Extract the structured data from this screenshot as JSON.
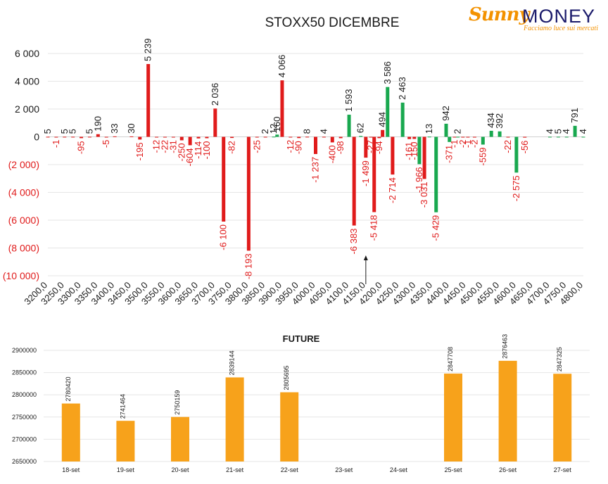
{
  "logo": {
    "brand_1": "Sunny",
    "brand_2": "MONEY",
    "tagline": "Facciamo luce sui mercati"
  },
  "colors": {
    "negative": "#e01b1b",
    "positive": "#19a84f",
    "future": "#f7a21b",
    "gridline": "#e6e6e6",
    "text": "#1a1a1a"
  },
  "chart_data": [
    {
      "type": "bar",
      "title": "STOXX50 DICEMBRE",
      "ylim": [
        -10000,
        6000
      ],
      "yticks": [
        6000,
        4000,
        2000,
        0,
        -2000,
        -4000,
        -6000,
        -8000,
        -10000
      ],
      "ytick_labels": [
        "6 000",
        "4 000",
        "2 000",
        "0",
        "(2 000)",
        "(4 000)",
        "(6 000)",
        "(8 000)",
        "(10 000)"
      ],
      "xlim": [
        3200,
        4800
      ],
      "xticks": [
        3200,
        3250,
        3300,
        3350,
        3400,
        3450,
        3500,
        3550,
        3600,
        3650,
        3700,
        3750,
        3800,
        3850,
        3900,
        3950,
        4000,
        4050,
        4100,
        4150,
        4200,
        4250,
        4300,
        4350,
        4400,
        4450,
        4500,
        4550,
        4600,
        4650,
        4700,
        4750,
        4800
      ],
      "xtick_labels": [
        "3200,0",
        "3250,0",
        "3300,0",
        "3350,0",
        "3400,0",
        "3450,0",
        "3500,0",
        "3550,0",
        "3600,0",
        "3650,0",
        "3700,0",
        "3750,0",
        "3800,0",
        "3850,0",
        "3900,0",
        "3950,0",
        "4000,0",
        "4050,0",
        "4100,0",
        "4150,0",
        "4200,0",
        "4250,0",
        "4300,0",
        "4350,0",
        "4400,0",
        "4450,0",
        "4500,0",
        "4550,0",
        "4600,0",
        "4650,0",
        "4700,0",
        "4750,0",
        "4800,0"
      ],
      "grid": true,
      "annotation_arrow_x": 4150,
      "bars": [
        {
          "x": 3200,
          "value": 5,
          "label": "5",
          "color": "red"
        },
        {
          "x": 3225,
          "value": -1,
          "label": "-1",
          "color": "red"
        },
        {
          "x": 3250,
          "value": 5,
          "label": "5",
          "color": "red"
        },
        {
          "x": 3275,
          "value": 5,
          "label": "5",
          "color": "red"
        },
        {
          "x": 3300,
          "value": -95,
          "label": "-95",
          "color": "red"
        },
        {
          "x": 3325,
          "value": 5,
          "label": "5",
          "color": "red"
        },
        {
          "x": 3350,
          "value": 190,
          "label": "190",
          "color": "red"
        },
        {
          "x": 3375,
          "value": -5,
          "label": "-5",
          "color": "red"
        },
        {
          "x": 3400,
          "value": 33,
          "label": "33",
          "color": "red"
        },
        {
          "x": 3450,
          "value": 30,
          "label": "30",
          "color": "red"
        },
        {
          "x": 3475,
          "value": -195,
          "label": "-195",
          "color": "red"
        },
        {
          "x": 3500,
          "value": 5239,
          "label": "5 239",
          "color": "red"
        },
        {
          "x": 3525,
          "value": -12,
          "label": "-12",
          "color": "red"
        },
        {
          "x": 3550,
          "value": -22,
          "label": "-22",
          "color": "red"
        },
        {
          "x": 3575,
          "value": -31,
          "label": "-31",
          "color": "red"
        },
        {
          "x": 3600,
          "value": -250,
          "label": "-250",
          "color": "red"
        },
        {
          "x": 3625,
          "value": -604,
          "label": "-604",
          "color": "red"
        },
        {
          "x": 3650,
          "value": -114,
          "label": "-114",
          "color": "red"
        },
        {
          "x": 3675,
          "value": -100,
          "label": "-100",
          "color": "red"
        },
        {
          "x": 3700,
          "value": 2036,
          "label": "2 036",
          "color": "red"
        },
        {
          "x": 3725,
          "value": -6100,
          "label": "-6 100",
          "color": "red"
        },
        {
          "x": 3750,
          "value": -82,
          "label": "-82",
          "color": "red"
        },
        {
          "x": 3800,
          "value": -8193,
          "label": "-8 193",
          "color": "red"
        },
        {
          "x": 3825,
          "value": -25,
          "label": "-25",
          "color": "red"
        },
        {
          "x": 3850,
          "value": 2,
          "label": "2",
          "color": "red"
        },
        {
          "x": 3875,
          "value": 12,
          "label": "12",
          "color": "green"
        },
        {
          "x": 3885,
          "value": 160,
          "label": "160",
          "color": "green"
        },
        {
          "x": 3900,
          "value": 4066,
          "label": "4 066",
          "color": "red"
        },
        {
          "x": 3925,
          "value": -12,
          "label": "-12",
          "color": "red"
        },
        {
          "x": 3950,
          "value": -90,
          "label": "-90",
          "color": "red"
        },
        {
          "x": 3975,
          "value": 8,
          "label": "8",
          "color": "red"
        },
        {
          "x": 4000,
          "value": -1237,
          "label": "-1 237",
          "color": "red"
        },
        {
          "x": 4025,
          "value": 4,
          "label": "4",
          "color": "red"
        },
        {
          "x": 4050,
          "value": -400,
          "label": "-400",
          "color": "red"
        },
        {
          "x": 4075,
          "value": -98,
          "label": "-98",
          "color": "red"
        },
        {
          "x": 4100,
          "value": 1593,
          "label": "1 593",
          "color": "green"
        },
        {
          "x": 4115,
          "value": -6383,
          "label": "-6 383",
          "color": "red"
        },
        {
          "x": 4135,
          "value": 62,
          "label": "62",
          "color": "green"
        },
        {
          "x": 4150,
          "value": -1499,
          "label": "-1 499",
          "color": "red"
        },
        {
          "x": 4165,
          "value": -27,
          "label": "-27",
          "color": "red"
        },
        {
          "x": 4175,
          "value": -5418,
          "label": "-5 418",
          "color": "red"
        },
        {
          "x": 4190,
          "value": -94,
          "label": "-94",
          "color": "red"
        },
        {
          "x": 4200,
          "value": 494,
          "label": "494",
          "color": "red"
        },
        {
          "x": 4215,
          "value": 3586,
          "label": "3 586",
          "color": "green"
        },
        {
          "x": 4230,
          "value": -2714,
          "label": "-2 714",
          "color": "red"
        },
        {
          "x": 4260,
          "value": 2463,
          "label": "2 463",
          "color": "green"
        },
        {
          "x": 4280,
          "value": -161,
          "label": "-161",
          "color": "red"
        },
        {
          "x": 4295,
          "value": -150,
          "label": "-150",
          "color": "red"
        },
        {
          "x": 4310,
          "value": -1966,
          "label": "-1 966",
          "color": "green"
        },
        {
          "x": 4325,
          "value": -3031,
          "label": "-3 031",
          "color": "red"
        },
        {
          "x": 4340,
          "value": 13,
          "label": "13",
          "color": "green"
        },
        {
          "x": 4360,
          "value": -5429,
          "label": "-5 429",
          "color": "green"
        },
        {
          "x": 4390,
          "value": 942,
          "label": "942",
          "color": "green"
        },
        {
          "x": 4400,
          "value": -371,
          "label": "-371",
          "color": "green"
        },
        {
          "x": 4415,
          "value": -1,
          "label": "-1",
          "color": "red"
        },
        {
          "x": 4425,
          "value": 2,
          "label": "2",
          "color": "green"
        },
        {
          "x": 4440,
          "value": -2,
          "label": "-2",
          "color": "red"
        },
        {
          "x": 4455,
          "value": -1,
          "label": "-1",
          "color": "red"
        },
        {
          "x": 4475,
          "value": -2,
          "label": "-2",
          "color": "red"
        },
        {
          "x": 4500,
          "value": -559,
          "label": "-559",
          "color": "green"
        },
        {
          "x": 4525,
          "value": 434,
          "label": "434",
          "color": "green"
        },
        {
          "x": 4550,
          "value": 392,
          "label": "392",
          "color": "green"
        },
        {
          "x": 4575,
          "value": -22,
          "label": "-22",
          "color": "red"
        },
        {
          "x": 4600,
          "value": -2575,
          "label": "-2 575",
          "color": "green"
        },
        {
          "x": 4625,
          "value": -56,
          "label": "-56",
          "color": "red"
        },
        {
          "x": 4700,
          "value": 4,
          "label": "4",
          "color": "green"
        },
        {
          "x": 4725,
          "value": 5,
          "label": "5",
          "color": "green"
        },
        {
          "x": 4750,
          "value": 4,
          "label": "4",
          "color": "green"
        },
        {
          "x": 4775,
          "value": 791,
          "label": "791",
          "color": "green"
        },
        {
          "x": 4800,
          "value": 4,
          "label": "4",
          "color": "green"
        }
      ]
    },
    {
      "type": "bar",
      "title": "FUTURE",
      "ylim": [
        2650000,
        2900000
      ],
      "yticks": [
        2650000,
        2700000,
        2750000,
        2800000,
        2850000,
        2900000
      ],
      "ytick_labels": [
        "2650000",
        "2700000",
        "2750000",
        "2800000",
        "2850000",
        "2900000"
      ],
      "categories": [
        "18-set",
        "19-set",
        "20-set",
        "21-set",
        "22-set",
        "23-set",
        "24-set",
        "25-set",
        "26-set",
        "27-set"
      ],
      "values": [
        2780420,
        2741464,
        2750159,
        2839144,
        2805695,
        null,
        null,
        2847708,
        2876463,
        2847325
      ],
      "value_labels": [
        "2780420",
        "2741464",
        "2750159",
        "2839144",
        "2805695",
        "",
        "",
        "2847708",
        "2876463",
        "2847325"
      ],
      "grid": true
    }
  ]
}
